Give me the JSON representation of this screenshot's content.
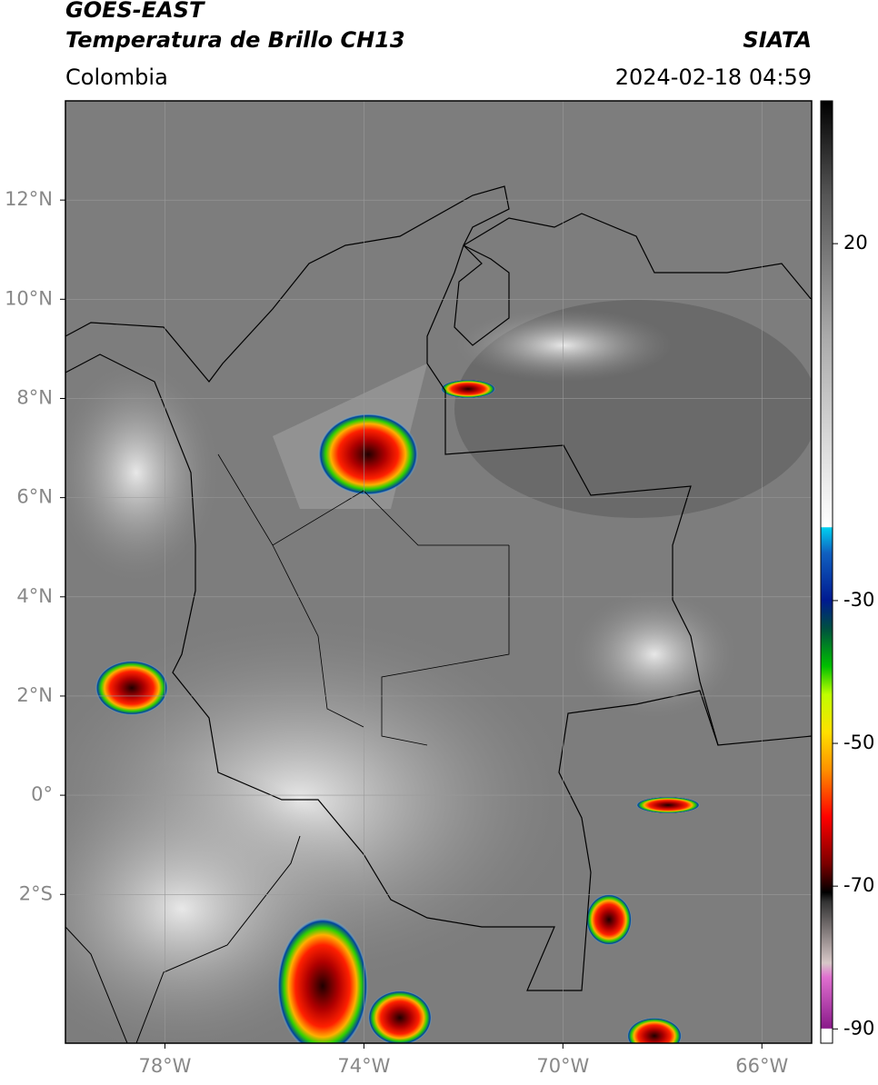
{
  "header": {
    "title": "GOES-EAST",
    "subtitle": "Temperatura de Brillo CH13",
    "region": "Colombia",
    "source": "SIATA",
    "datetime": "2024-02-18 04:59"
  },
  "map": {
    "xlim": [
      -80,
      -65
    ],
    "ylim": [
      -5,
      14
    ],
    "xticks": [
      {
        "value": -78,
        "label": "78°W"
      },
      {
        "value": -74,
        "label": "74°W"
      },
      {
        "value": -70,
        "label": "70°W"
      },
      {
        "value": -66,
        "label": "66°W"
      }
    ],
    "yticks": [
      {
        "value": 12,
        "label": "12°N"
      },
      {
        "value": 10,
        "label": "10°N"
      },
      {
        "value": 8,
        "label": "8°N"
      },
      {
        "value": 6,
        "label": "6°N"
      },
      {
        "value": 4,
        "label": "4°N"
      },
      {
        "value": 2,
        "label": "2°N"
      },
      {
        "value": 0,
        "label": "0°"
      },
      {
        "value": -2,
        "label": "2°S"
      }
    ],
    "grid": true
  },
  "colorbar": {
    "lim": [
      -92,
      40
    ],
    "ticks": [
      20,
      -30,
      -50,
      -70,
      -90
    ]
  }
}
